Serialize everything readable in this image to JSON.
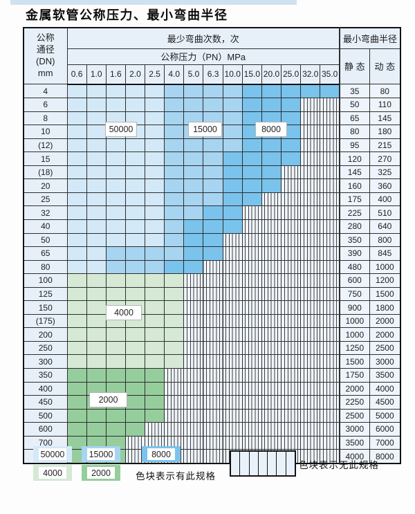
{
  "title": "金属软管公称压力、最小弯曲半径",
  "table": {
    "dn_header_lines": [
      "公称",
      "通径",
      "(DN)",
      "mm"
    ],
    "bend_cycles_header": "最少弯曲次数，次",
    "pressure_header": "公称压力（PN）MPa",
    "radius_header": "最小弯曲半径",
    "static_header": "静 态",
    "dynamic_header": "动 态",
    "pressure_columns": [
      "0.6",
      "1.0",
      "1.6",
      "2.0",
      "2.5",
      "4.0",
      "5.0",
      "6.3",
      "10.0",
      "15.0",
      "20.0",
      "25.0",
      "32.0",
      "35.0"
    ],
    "cell_legend_key": {
      "L": "50000",
      "M": "15000",
      "D": "8000",
      "g": "4000",
      "G": "2000",
      "s": "no-spec"
    },
    "rows": [
      {
        "dn": "4",
        "cells": "LLLLLMMMMDDDDD",
        "static": "35",
        "dynamic": "80"
      },
      {
        "dn": "6",
        "cells": "LLLLLMMMMDDDss",
        "static": "50",
        "dynamic": "110"
      },
      {
        "dn": "8",
        "cells": "LLLLLMMMMDDDss",
        "static": "65",
        "dynamic": "145"
      },
      {
        "dn": "10",
        "cells": "LLLLLMMMMDDDss",
        "static": "80",
        "dynamic": "180"
      },
      {
        "dn": "(12)",
        "cells": "LLLLLMMMMDDDss",
        "static": "95",
        "dynamic": "215"
      },
      {
        "dn": "15",
        "cells": "LLLLLMMMDDDDss",
        "static": "120",
        "dynamic": "270"
      },
      {
        "dn": "(18)",
        "cells": "LLLLLMMMDDDsss",
        "static": "145",
        "dynamic": "325"
      },
      {
        "dn": "20",
        "cells": "LLLLLMMMDDDsss",
        "static": "160",
        "dynamic": "360"
      },
      {
        "dn": "25",
        "cells": "LLLLLMMMDDssss",
        "static": "175",
        "dynamic": "400"
      },
      {
        "dn": "32",
        "cells": "LLLLLMMDDsssss",
        "static": "225",
        "dynamic": "510"
      },
      {
        "dn": "40",
        "cells": "LLLLLMDDDsssss",
        "static": "280",
        "dynamic": "640"
      },
      {
        "dn": "50",
        "cells": "LLLLLMDDssssss",
        "static": "350",
        "dynamic": "800"
      },
      {
        "dn": "65",
        "cells": "LLMMMMDDssssss",
        "static": "390",
        "dynamic": "845"
      },
      {
        "dn": "80",
        "cells": "LLMMMDDsssssss",
        "static": "480",
        "dynamic": "1000"
      },
      {
        "dn": "100",
        "cells": "ggggggssssssss",
        "static": "600",
        "dynamic": "1200"
      },
      {
        "dn": "125",
        "cells": "ggggggssssssss",
        "static": "750",
        "dynamic": "1500"
      },
      {
        "dn": "150",
        "cells": "ggggggssssssss",
        "static": "900",
        "dynamic": "1800"
      },
      {
        "dn": "(175)",
        "cells": "ggggggssssssss",
        "static": "1000",
        "dynamic": "2000"
      },
      {
        "dn": "200",
        "cells": "ggggggssssssss",
        "static": "1000",
        "dynamic": "2000"
      },
      {
        "dn": "250",
        "cells": "ggggggssssssss",
        "static": "1250",
        "dynamic": "2500"
      },
      {
        "dn": "300",
        "cells": "ggggggssssssss",
        "static": "1500",
        "dynamic": "3000"
      },
      {
        "dn": "350",
        "cells": "GGGGGsssssssss",
        "static": "1750",
        "dynamic": "3500"
      },
      {
        "dn": "400",
        "cells": "GGGGGsssssssss",
        "static": "2000",
        "dynamic": "4000"
      },
      {
        "dn": "450",
        "cells": "GGGGGsssssssss",
        "static": "2250",
        "dynamic": "4500"
      },
      {
        "dn": "500",
        "cells": "GGGGGsssssssss",
        "static": "2500",
        "dynamic": "5000"
      },
      {
        "dn": "600",
        "cells": "GGGGssssssssss",
        "static": "3000",
        "dynamic": "6000"
      },
      {
        "dn": "700",
        "cells": "GGGsssssssssss",
        "static": "3500",
        "dynamic": "7000"
      },
      {
        "dn": "800",
        "cells": "GGGsssssssssss",
        "static": "4000",
        "dynamic": "8000"
      }
    ]
  },
  "region_labels": {
    "r50000": "50000",
    "r15000": "15000",
    "r8000": "8000",
    "r4000": "4000",
    "r2000": "2000"
  },
  "legend": {
    "items": [
      {
        "label": "50000",
        "color": "#d3e9f8"
      },
      {
        "label": "15000",
        "color": "#a7d4f1"
      },
      {
        "label": "8000",
        "color": "#7ac3ec"
      },
      {
        "label": "4000",
        "color": "#d5e9d5"
      },
      {
        "label": "2000",
        "color": "#96cd9d"
      }
    ],
    "has_spec_text": "色块表示有此规格",
    "no_spec_text": "色块表示无此规格"
  },
  "colors": {
    "blue_50000": "#d3e9f8",
    "blue_15000": "#a7d4f1",
    "blue_8000": "#7ac3ec",
    "green_4000": "#d5e9d5",
    "green_2000": "#96cd9d",
    "no_spec_bg": "#eff5fc",
    "header_bg": "#e7f0f9",
    "top_strip": "#cee2f2"
  }
}
